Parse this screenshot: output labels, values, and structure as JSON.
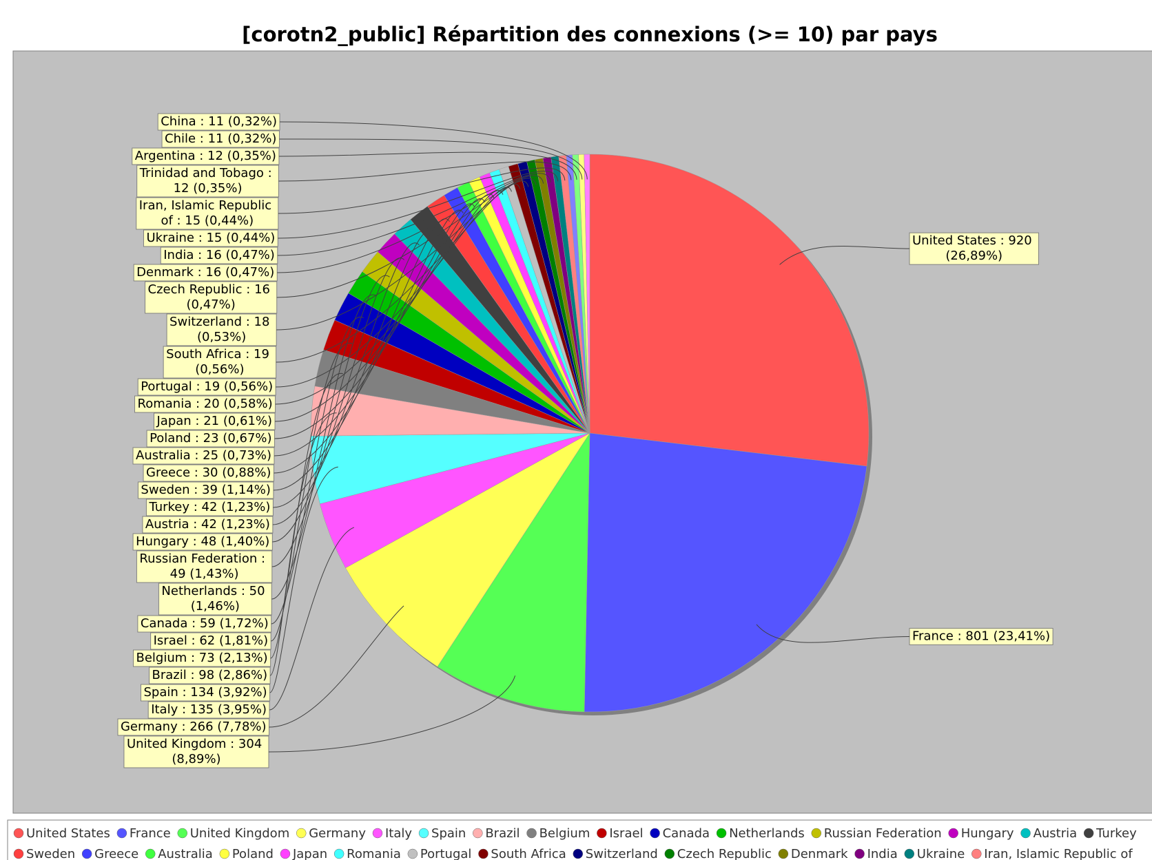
{
  "chart_data": {
    "type": "pie",
    "title": "[corotn2_public] Répartition des connexions (>= 10) par pays",
    "categories": [
      "United States",
      "France",
      "United Kingdom",
      "Germany",
      "Italy",
      "Spain",
      "Brazil",
      "Belgium",
      "Israel",
      "Canada",
      "Netherlands",
      "Russian Federation",
      "Hungary",
      "Austria",
      "Turkey",
      "Sweden",
      "Greece",
      "Australia",
      "Poland",
      "Japan",
      "Romania",
      "Portugal",
      "South Africa",
      "Switzerland",
      "Czech Republic",
      "Denmark",
      "India",
      "Ukraine",
      "Iran, Islamic Republic of",
      "Trinidad and Tobago",
      "Argentina",
      "Chile",
      "China"
    ],
    "values": [
      920,
      801,
      304,
      266,
      135,
      134,
      98,
      73,
      62,
      59,
      50,
      49,
      48,
      42,
      42,
      39,
      30,
      25,
      23,
      21,
      20,
      19,
      19,
      18,
      16,
      16,
      16,
      15,
      15,
      12,
      12,
      11,
      11
    ],
    "value_labels": [
      "United States : 920 (26,89%)",
      "France : 801 (23,41%)",
      "United Kingdom : 304 (8,89%)",
      "Germany : 266 (7,78%)",
      "Italy : 135 (3,95%)",
      "Spain : 134 (3,92%)",
      "Brazil : 98 (2,86%)",
      "Belgium : 73 (2,13%)",
      "Israel : 62 (1,81%)",
      "Canada : 59 (1,72%)",
      "Netherlands : 50 (1,46%)",
      "Russian Federation : 49 (1,43%)",
      "Hungary : 48 (1,40%)",
      "Austria : 42 (1,23%)",
      "Turkey : 42 (1,23%)",
      "Sweden : 39 (1,14%)",
      "Greece : 30 (0,88%)",
      "Australia : 25 (0,73%)",
      "Poland : 23 (0,67%)",
      "Japan : 21 (0,61%)",
      "Romania : 20 (0,58%)",
      "Portugal : 19 (0,56%)",
      "South Africa : 19 (0,56%)",
      "Switzerland : 18 (0,53%)",
      "Czech Republic : 16 (0,47%)",
      "Denmark : 16 (0,47%)",
      "India : 16 (0,47%)",
      "Ukraine : 15 (0,44%)",
      "Iran, Islamic Republic of : 15 (0,44%)",
      "Trinidad and Tobago : 12 (0,35%)",
      "Argentina : 12 (0,35%)",
      "Chile : 11 (0,32%)",
      "China : 11 (0,32%)"
    ],
    "colors": [
      "#ff5555",
      "#5555ff",
      "#55ff55",
      "#ffff55",
      "#ff55ff",
      "#55ffff",
      "#ffafaf",
      "#808080",
      "#c00000",
      "#0000c0",
      "#00c000",
      "#c0c000",
      "#c000c0",
      "#00c0c0",
      "#404040",
      "#ff4040",
      "#4040ff",
      "#40ff40",
      "#ffff40",
      "#ff40ff",
      "#40ffff",
      "#c0c0c0",
      "#800000",
      "#000080",
      "#008000",
      "#808000",
      "#800080",
      "#008080",
      "#ff8080",
      "#8080ff",
      "#80ff80",
      "#ffff80",
      "#ff80ff"
    ],
    "legend": "bottom"
  }
}
